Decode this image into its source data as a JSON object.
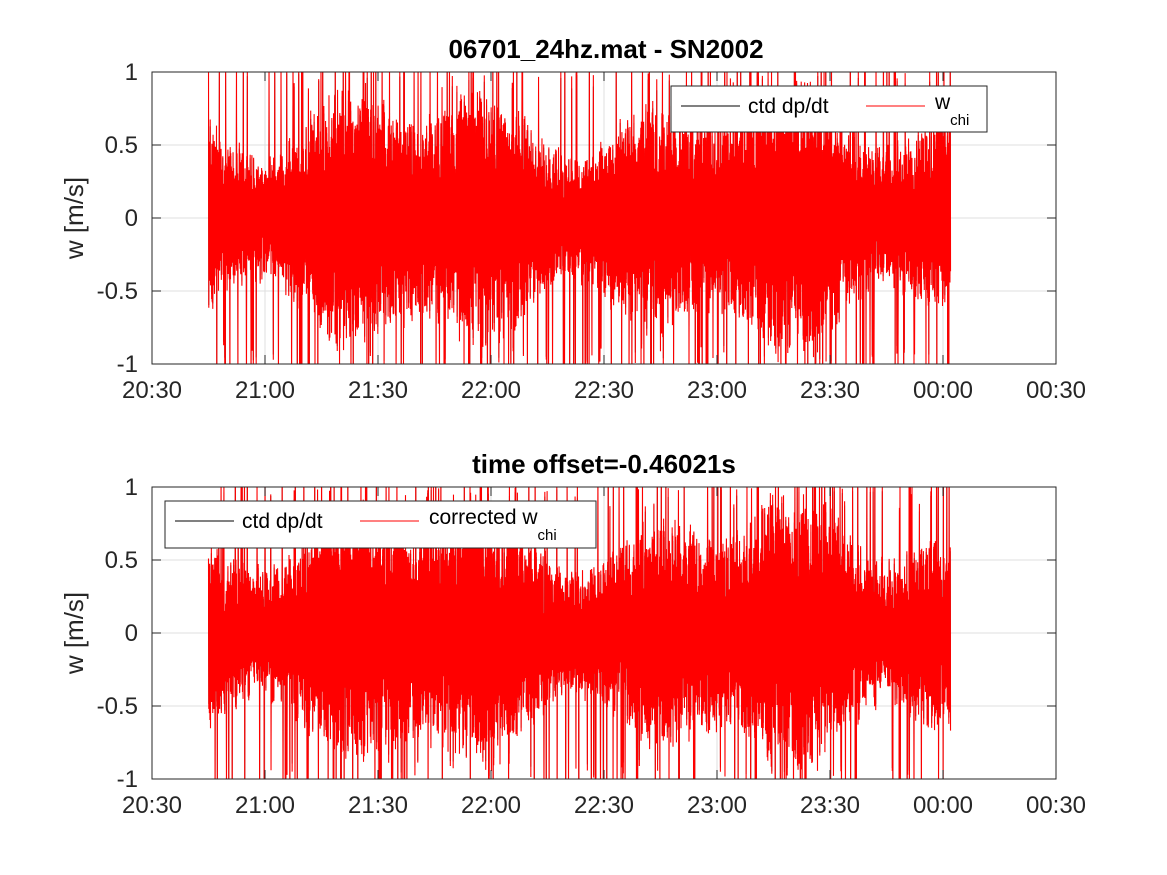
{
  "chart_data": [
    {
      "type": "line",
      "title": "06701_24hz.mat - SN2002",
      "xlabel": "",
      "ylabel": "w [m/s]",
      "x_ticks": [
        "20:30",
        "21:00",
        "21:30",
        "22:00",
        "22:30",
        "23:00",
        "23:30",
        "00:00",
        "00:30"
      ],
      "y_ticks": [
        "1",
        "0.5",
        "0",
        "-0.5",
        "-1"
      ],
      "xlim": [
        "20:30",
        "00:30"
      ],
      "ylim": [
        -1,
        1
      ],
      "grid": true,
      "legend_position": "top-right",
      "series": [
        {
          "name": "ctd dp/dt",
          "color": "#000000",
          "t_start": "20:45",
          "t_end": "00:02",
          "value_range": [
            -1,
            1
          ],
          "typical_amplitude": 0.7
        },
        {
          "name": "w",
          "name_subscript": "chi",
          "color": "#ff0000",
          "t_start": "20:45",
          "t_end": "00:02",
          "value_range": [
            -1,
            1
          ],
          "typical_amplitude": 0.7
        }
      ]
    },
    {
      "type": "line",
      "title": "time offset=-0.46021s",
      "xlabel": "",
      "ylabel": "w [m/s]",
      "x_ticks": [
        "20:30",
        "21:00",
        "21:30",
        "22:00",
        "22:30",
        "23:00",
        "23:30",
        "00:00",
        "00:30"
      ],
      "y_ticks": [
        "1",
        "0.5",
        "0",
        "-0.5",
        "-1"
      ],
      "xlim": [
        "20:30",
        "00:30"
      ],
      "ylim": [
        -1,
        1
      ],
      "grid": true,
      "legend_position": "top-left",
      "series": [
        {
          "name": "ctd dp/dt",
          "color": "#000000",
          "t_start": "20:45",
          "t_end": "00:02",
          "value_range": [
            -1,
            1
          ],
          "typical_amplitude": 0.7
        },
        {
          "name": "corrected w",
          "name_subscript": "chi",
          "color": "#ff0000",
          "t_start": "20:45",
          "t_end": "00:02",
          "value_range": [
            -1,
            1
          ],
          "typical_amplitude": 0.7
        }
      ]
    }
  ]
}
